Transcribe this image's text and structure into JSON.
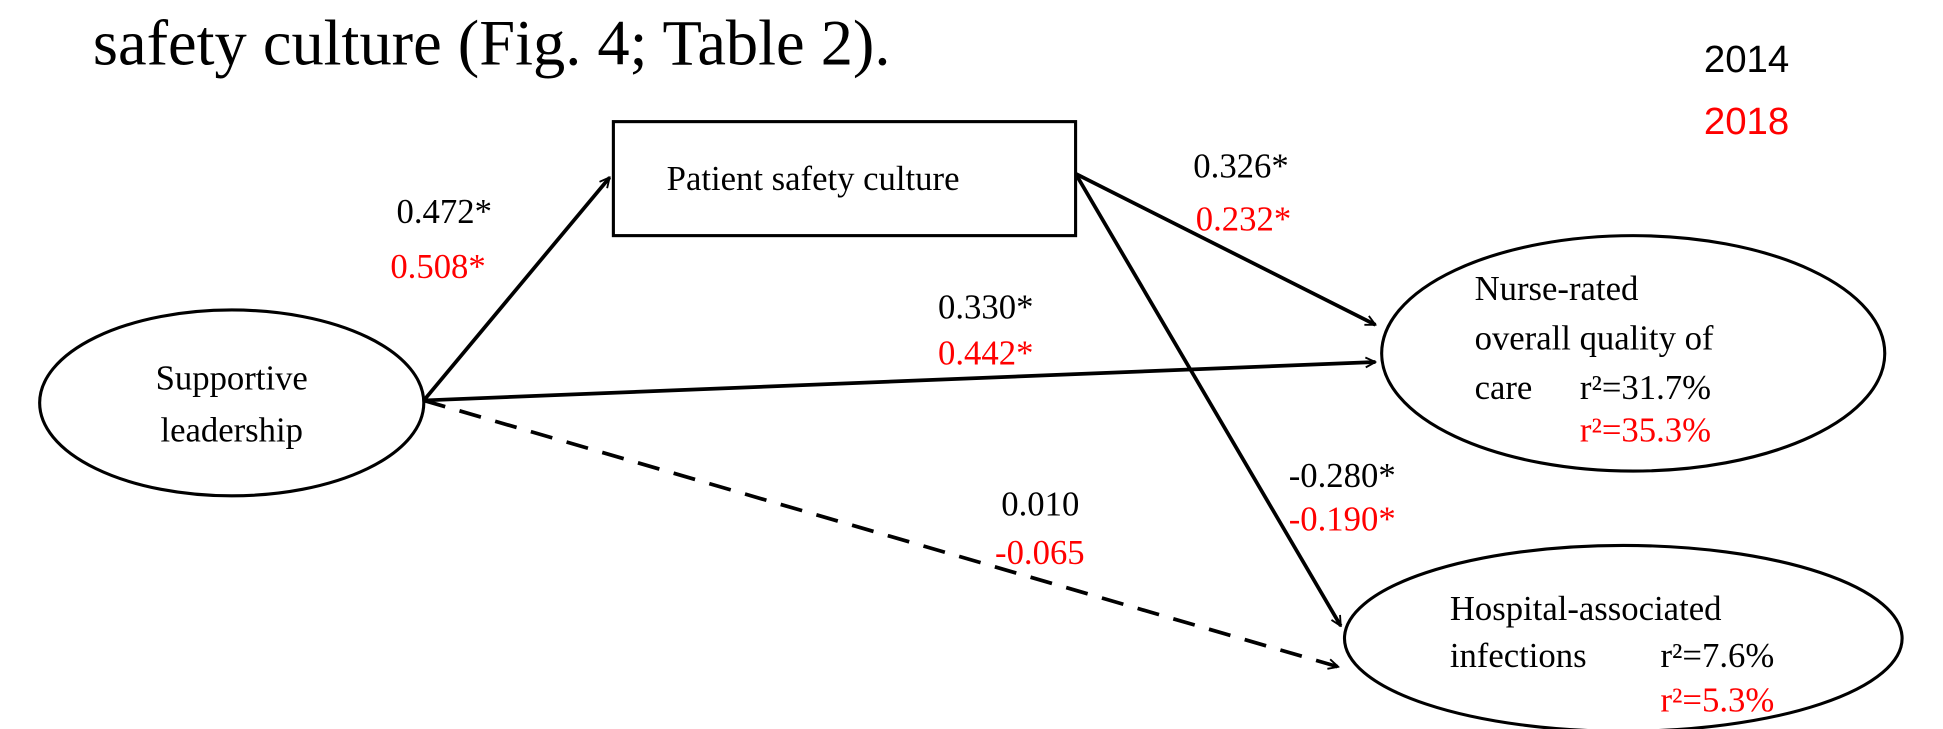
{
  "header": {
    "title": "safety culture (Fig. 4; Table 2)."
  },
  "legend": [
    "2014",
    "2018"
  ],
  "nodes": [
    {
      "lines": [
        "Supportive",
        "leadership"
      ]
    },
    {
      "lines": [
        "Patient safety culture"
      ]
    },
    {
      "lines": [
        "Nurse-rated",
        "overall quality of",
        "care"
      ],
      "r2": [
        "r²=31.7%",
        "r²=35.3%"
      ]
    },
    {
      "lines": [
        "Hospital-associated",
        "infections"
      ],
      "r2": [
        "r²=7.6%",
        "r²=5.3%"
      ]
    }
  ],
  "edges": [
    {
      "labels": [
        "0.472*",
        "0.508*"
      ]
    },
    {
      "labels": [
        "0.326*",
        "0.232*"
      ]
    },
    {
      "labels": [
        "0.330*",
        "0.442*"
      ]
    },
    {
      "labels": [
        "-0.280*",
        "-0.190*"
      ]
    },
    {
      "labels": [
        "0.010",
        "-0.065"
      ]
    }
  ]
}
